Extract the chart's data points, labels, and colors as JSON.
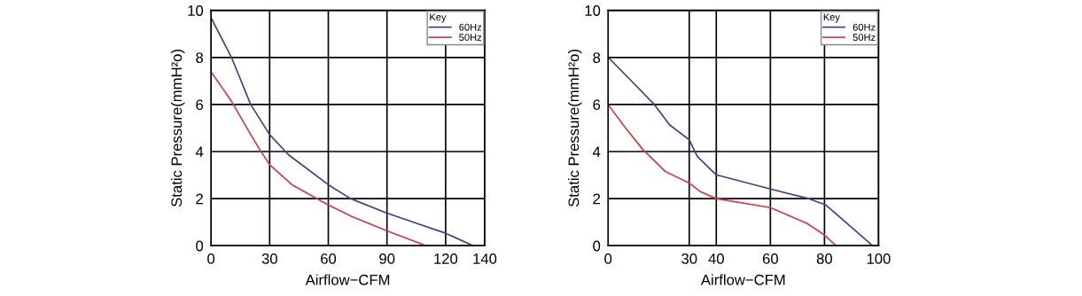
{
  "chart_data": [
    {
      "type": "line",
      "xlabel": "Airflow−CFM",
      "ylabel": "Static Pressure(mmH²o)",
      "legend_title": "Key",
      "legend": "top right",
      "grid": true,
      "marker": "none",
      "line_style": "solid",
      "xlim": [
        0,
        140
      ],
      "xticks": [
        0,
        30,
        60,
        90,
        120,
        140
      ],
      "ylim": [
        0,
        10
      ],
      "yticks": [
        0,
        2,
        4,
        6,
        8,
        10
      ],
      "series": [
        {
          "name": "60Hz",
          "color": "#3c3f8f",
          "x": [
            0,
            10.5,
            20.3,
            30,
            39.7,
            60,
            71.4,
            90,
            120,
            134
          ],
          "values": [
            9.69,
            8.0,
            6.0,
            4.72,
            3.86,
            2.59,
            2.0,
            1.38,
            0.53,
            0
          ]
        },
        {
          "name": "50Hz",
          "color": "#d9363e",
          "x": [
            0,
            10.5,
            20.3,
            25,
            30,
            41.4,
            60,
            72,
            90,
            110
          ],
          "values": [
            7.39,
            6.14,
            4.72,
            4.08,
            3.44,
            2.59,
            1.73,
            1.24,
            0.63,
            0
          ]
        }
      ]
    },
    {
      "type": "line",
      "xlabel": "Airflow−CFM",
      "ylabel": "Static Pressure(mmH²o)",
      "legend_title": "Key",
      "legend": "top right",
      "grid": true,
      "marker": "none",
      "line_style": "solid",
      "xlim": [
        0,
        100
      ],
      "xticks": [
        0,
        30,
        40,
        60,
        80,
        100
      ],
      "ylim": [
        0,
        10
      ],
      "yticks": [
        0,
        2,
        4,
        6,
        8,
        10
      ],
      "series": [
        {
          "name": "60Hz",
          "color": "#3c3f8f",
          "x": [
            0,
            8.1,
            17.1,
            22.7,
            30,
            33,
            40,
            60,
            73.5,
            80.5,
            87.6,
            97.8
          ],
          "values": [
            8.01,
            7.06,
            6.0,
            5.14,
            4.5,
            3.79,
            3.01,
            2.41,
            2.02,
            1.73,
            1.02,
            0
          ]
        },
        {
          "name": "50Hz",
          "color": "#d9363e",
          "x": [
            0,
            6.5,
            12.9,
            21.2,
            30,
            34.1,
            40,
            60,
            73.5,
            80,
            84.3
          ],
          "values": [
            6.0,
            5.0,
            4.08,
            3.15,
            2.66,
            2.3,
            2.0,
            1.62,
            0.95,
            0.45,
            0
          ]
        }
      ]
    }
  ]
}
